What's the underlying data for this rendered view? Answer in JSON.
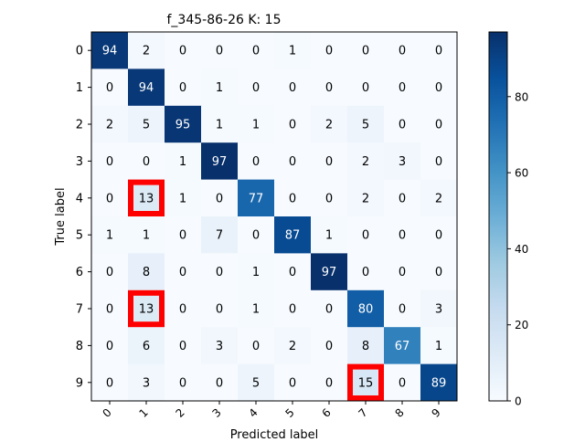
{
  "chart_data": {
    "type": "heatmap",
    "title": "f_345-86-26 K: 15",
    "xlabel": "Predicted label",
    "ylabel": "True label",
    "x_categories": [
      "0",
      "1",
      "2",
      "3",
      "4",
      "5",
      "6",
      "7",
      "8",
      "9"
    ],
    "y_categories": [
      "0",
      "1",
      "2",
      "3",
      "4",
      "5",
      "6",
      "7",
      "8",
      "9"
    ],
    "matrix": [
      [
        94,
        2,
        0,
        0,
        0,
        1,
        0,
        0,
        0,
        0
      ],
      [
        0,
        94,
        0,
        1,
        0,
        0,
        0,
        0,
        0,
        0
      ],
      [
        2,
        5,
        95,
        1,
        1,
        0,
        2,
        5,
        0,
        0
      ],
      [
        0,
        0,
        1,
        97,
        0,
        0,
        0,
        2,
        3,
        0
      ],
      [
        0,
        13,
        1,
        0,
        77,
        0,
        0,
        2,
        0,
        2
      ],
      [
        1,
        1,
        0,
        7,
        0,
        87,
        1,
        0,
        0,
        0
      ],
      [
        0,
        8,
        0,
        0,
        1,
        0,
        97,
        0,
        0,
        0
      ],
      [
        0,
        13,
        0,
        0,
        1,
        0,
        0,
        80,
        0,
        3
      ],
      [
        0,
        6,
        0,
        3,
        0,
        2,
        0,
        8,
        67,
        1
      ],
      [
        0,
        3,
        0,
        0,
        5,
        0,
        0,
        15,
        0,
        89
      ]
    ],
    "highlighted_cells": [
      [
        4,
        1
      ],
      [
        7,
        1
      ],
      [
        9,
        7
      ]
    ],
    "highlight_color": "#ff0000",
    "colormap": "Blues",
    "colorbar": {
      "range": [
        0,
        97
      ],
      "ticks": [
        0,
        20,
        40,
        60,
        80
      ],
      "tick_labels": [
        "0",
        "20",
        "40",
        "60",
        "80"
      ]
    },
    "grid": false
  }
}
